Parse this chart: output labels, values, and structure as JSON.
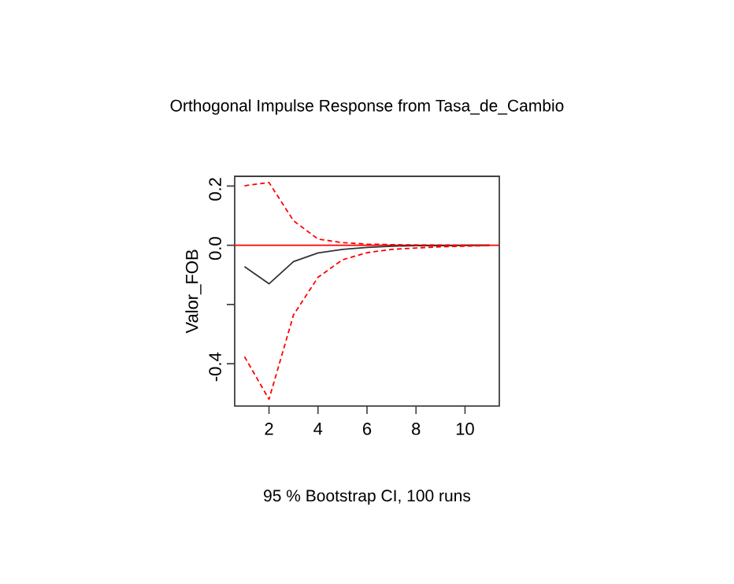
{
  "chart_data": {
    "type": "line",
    "title": "Orthogonal Impulse Response from Tasa_de_Cambio",
    "xlabel": "95 % Bootstrap CI, 100 runs",
    "ylabel": "Valor_FOB",
    "x": [
      1,
      2,
      3,
      4,
      5,
      6,
      7,
      8,
      9,
      10,
      11
    ],
    "series": [
      {
        "color": "#333333",
        "line_style": "solid",
        "values": [
          -0.072,
          -0.13,
          -0.055,
          -0.026,
          -0.014,
          -0.007,
          -0.003,
          -0.001,
          -0.001,
          0,
          0
        ]
      },
      {
        "color": "#ff0000",
        "line_style": "dashed",
        "values": [
          0.201,
          0.212,
          0.083,
          0.021,
          0.009,
          0.004,
          0.002,
          0.001,
          0.001,
          0,
          0
        ]
      },
      {
        "color": "#ff0000",
        "line_style": "dashed",
        "values": [
          -0.376,
          -0.52,
          -0.235,
          -0.108,
          -0.049,
          -0.025,
          -0.014,
          -0.009,
          -0.005,
          -0.003,
          -0.001
        ]
      }
    ],
    "xlim": [
      0.6,
      11.4
    ],
    "ylim": [
      -0.543,
      0.233
    ],
    "xticks": [
      2,
      4,
      6,
      8,
      10
    ],
    "yticks": [
      0.2,
      {
        "value": 0,
        "label": "0.0"
      },
      {
        "value": -0.2,
        "label": null
      },
      -0.4
    ],
    "ref_lines": [
      {
        "axis": "y",
        "value": 0,
        "color": "#ff0000"
      }
    ],
    "grid": false,
    "marker": "none"
  }
}
